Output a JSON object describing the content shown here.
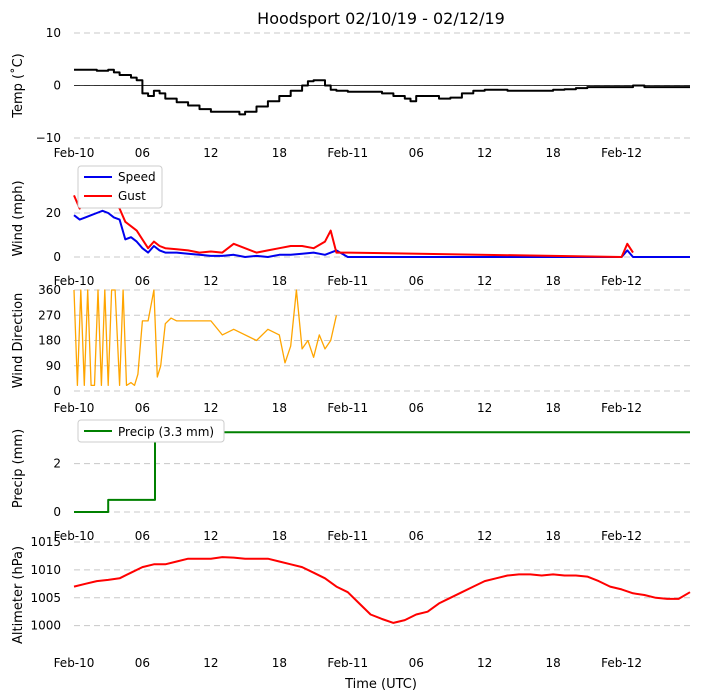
{
  "title": "Hoodsport 02/10/19 - 02/12/19",
  "xlabel": "Time (UTC)",
  "x_ticks": [
    "Feb-10",
    "06",
    "12",
    "18",
    "Feb-11",
    "06",
    "12",
    "18",
    "Feb-12"
  ],
  "x_range_hours": [
    0,
    54
  ],
  "colors": {
    "temp": "#000000",
    "speed": "#0000ee",
    "gust": "#ff0000",
    "dir": "#ffa500",
    "precip": "#008000",
    "alt": "#ff0000"
  },
  "chart_data": [
    {
      "type": "line",
      "id": "temp",
      "ylabel": "Temp (˚C)",
      "ylim": [
        -10,
        10
      ],
      "yticks": [
        "10",
        "0",
        "−10"
      ],
      "ytick_values": [
        10,
        0,
        -10
      ],
      "series": [
        {
          "name": "Temp",
          "x": [
            0,
            1,
            2,
            3,
            3.5,
            4,
            5,
            5.5,
            6,
            6.5,
            7,
            7.5,
            8,
            9,
            10,
            11,
            12,
            13,
            14,
            14.5,
            15,
            16,
            17,
            18,
            19,
            20,
            20.5,
            21,
            21.5,
            22,
            22.5,
            23,
            24,
            25,
            26,
            27,
            28,
            29,
            29.5,
            30,
            31,
            32,
            33,
            34,
            35,
            36,
            37,
            38,
            39,
            40,
            41,
            42,
            43,
            44,
            45,
            46,
            47,
            48,
            49,
            50,
            51,
            52,
            53,
            54
          ],
          "values": [
            3,
            3,
            2.8,
            3,
            2.5,
            2,
            1.5,
            1,
            -1.5,
            -2,
            -1,
            -1.5,
            -2.5,
            -3.2,
            -3.8,
            -4.5,
            -5,
            -5,
            -5,
            -5.5,
            -5,
            -4,
            -3,
            -2,
            -1,
            0,
            0.8,
            1,
            1,
            0,
            -0.8,
            -1,
            -1.2,
            -1.2,
            -1.2,
            -1.5,
            -2,
            -2.5,
            -3,
            -2,
            -2,
            -2.5,
            -2.3,
            -1.5,
            -1,
            -0.8,
            -0.8,
            -1,
            -1,
            -1,
            -1,
            -0.8,
            -0.7,
            -0.5,
            -0.3,
            -0.3,
            -0.3,
            -0.3,
            0,
            -0.3,
            -0.3,
            -0.3,
            -0.3,
            -0.3
          ]
        }
      ]
    },
    {
      "type": "line",
      "id": "wind",
      "ylabel": "Wind (mph)",
      "ylim": [
        0,
        35
      ],
      "yticks": [
        "20",
        "0"
      ],
      "ytick_values": [
        20,
        0
      ],
      "legend": [
        "Speed",
        "Gust"
      ],
      "series": [
        {
          "name": "Speed",
          "x": [
            0,
            0.5,
            1,
            1.5,
            2,
            2.5,
            3,
            3.5,
            4,
            4.5,
            5,
            5.5,
            6,
            6.5,
            7,
            7.5,
            8,
            9,
            10,
            11,
            12,
            13,
            14,
            15,
            16,
            17,
            18,
            19,
            20,
            21,
            22,
            23,
            24,
            25,
            30,
            35,
            40,
            45,
            48,
            48.5,
            49,
            50,
            54
          ],
          "values": [
            19,
            17,
            18,
            19,
            20,
            21,
            20,
            18,
            17,
            8,
            9,
            7,
            4,
            2,
            5,
            3,
            2,
            2,
            1.5,
            1,
            0.5,
            0.5,
            1,
            0,
            0.5,
            0,
            1,
            1,
            1.5,
            2,
            1,
            3,
            0,
            0,
            0,
            0,
            0,
            0,
            0,
            3,
            0,
            0,
            0
          ]
        },
        {
          "name": "Gust",
          "x": [
            0,
            0.5,
            1,
            1.5,
            2,
            2.5,
            3,
            3.5,
            4,
            4.5,
            5,
            5.5,
            6,
            6.5,
            7,
            7.5,
            8,
            9,
            10,
            11,
            12,
            13,
            14,
            16,
            17,
            18,
            19,
            20,
            21,
            22,
            22.5,
            23,
            24,
            48,
            48.5,
            49
          ],
          "values": [
            28,
            22,
            26,
            27,
            29,
            30,
            27,
            25,
            22,
            16,
            14,
            12,
            8,
            4,
            7,
            5,
            4,
            3.5,
            3,
            2,
            2.5,
            2,
            6,
            2,
            3,
            4,
            5,
            5,
            4,
            7,
            12,
            2,
            2,
            0,
            6,
            2
          ]
        }
      ]
    },
    {
      "type": "line",
      "id": "dir",
      "ylabel": "Wind Direction",
      "ylim": [
        0,
        360
      ],
      "yticks": [
        "360",
        "270",
        "180",
        "90",
        "0"
      ],
      "ytick_values": [
        360,
        270,
        180,
        90,
        0
      ],
      "series": [
        {
          "name": "Direction",
          "x": [
            0,
            0.3,
            0.6,
            0.9,
            1.2,
            1.5,
            1.8,
            2.1,
            2.4,
            2.7,
            3,
            3.3,
            3.6,
            4,
            4.3,
            4.6,
            5,
            5.3,
            5.6,
            6,
            6.5,
            7,
            7.3,
            7.6,
            8,
            8.5,
            9,
            10,
            11,
            12,
            13,
            14,
            16,
            17,
            18,
            18.5,
            19,
            19.5,
            20,
            20.5,
            21,
            21.5,
            22,
            22.5,
            23
          ],
          "values": [
            360,
            20,
            360,
            20,
            360,
            20,
            20,
            360,
            20,
            360,
            20,
            360,
            360,
            20,
            360,
            20,
            30,
            20,
            60,
            250,
            250,
            360,
            50,
            90,
            240,
            260,
            250,
            250,
            250,
            250,
            200,
            220,
            180,
            220,
            200,
            100,
            160,
            360,
            150,
            180,
            120,
            200,
            150,
            180,
            270
          ]
        }
      ]
    },
    {
      "type": "line",
      "id": "precip",
      "ylabel": "Precip (mm)",
      "ylim": [
        0,
        3.6
      ],
      "yticks": [
        "2",
        "0"
      ],
      "ytick_values": [
        2,
        0
      ],
      "legend": [
        "Precip (3.3 mm)"
      ],
      "series": [
        {
          "name": "Precip (3.3 mm)",
          "x": [
            0,
            2.9,
            3,
            7.0,
            7.1,
            54
          ],
          "values": [
            0,
            0,
            0.5,
            0.5,
            3.3,
            3.3
          ]
        }
      ]
    },
    {
      "type": "line",
      "id": "alt",
      "ylabel": "Altimeter (hPa)",
      "ylim": [
        996,
        1015
      ],
      "yticks": [
        "1015",
        "1010",
        "1005",
        "1000"
      ],
      "ytick_values": [
        1015,
        1010,
        1005,
        1000
      ],
      "series": [
        {
          "name": "Altimeter",
          "x": [
            0,
            1,
            2,
            3,
            4,
            5,
            6,
            7,
            8,
            9,
            10,
            11,
            12,
            13,
            14,
            15,
            16,
            17,
            18,
            19,
            20,
            21,
            22,
            23,
            24,
            25,
            26,
            27,
            28,
            29,
            30,
            31,
            32,
            33,
            34,
            35,
            36,
            37,
            38,
            39,
            40,
            41,
            42,
            43,
            44,
            45,
            46,
            47,
            48,
            49,
            50,
            51,
            52,
            53,
            54
          ],
          "values": [
            1007,
            1007.5,
            1008,
            1008.2,
            1008.5,
            1009.5,
            1010.5,
            1011,
            1011,
            1011.5,
            1012,
            1012,
            1012,
            1012.3,
            1012.2,
            1012,
            1012,
            1012,
            1011.5,
            1011,
            1010.5,
            1009.5,
            1008.5,
            1007,
            1006,
            1004,
            1002,
            1001.2,
            1000.5,
            1001,
            1002,
            1002.5,
            1004,
            1005,
            1006,
            1007,
            1008,
            1008.5,
            1009,
            1009.2,
            1009.2,
            1009,
            1009.2,
            1009,
            1009,
            1008.8,
            1008,
            1007,
            1006.5,
            1005.8,
            1005.5,
            1005,
            1004.8,
            1004.8,
            1006
          ]
        }
      ]
    }
  ]
}
